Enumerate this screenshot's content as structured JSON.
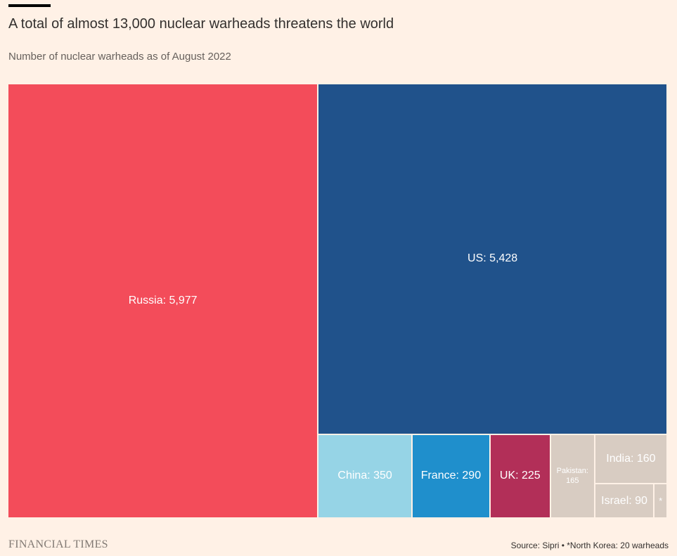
{
  "title": "A total of almost 13,000 nuclear warheads threatens the world",
  "subtitle": "Number of nuclear warheads as of August 2022",
  "source": "Source: Sipri • *North Korea: 20 warheads",
  "logo": "FINANCIAL TIMES",
  "chart_data": {
    "type": "treemap",
    "title": "A total of almost 13,000 nuclear warheads threatens the world",
    "subtitle": "Number of nuclear warheads as of August 2022",
    "items": [
      {
        "name": "Russia",
        "value": 5977,
        "label": "Russia: 5,977",
        "color": "#f34c5a"
      },
      {
        "name": "US",
        "value": 5428,
        "label": "US: 5,428",
        "color": "#20528b"
      },
      {
        "name": "China",
        "value": 350,
        "label": "China: 350",
        "color": "#96d4e6"
      },
      {
        "name": "France",
        "value": 290,
        "label": "France: 290",
        "color": "#1f8fcc"
      },
      {
        "name": "UK",
        "value": 225,
        "label": "UK: 225",
        "color": "#b22f58"
      },
      {
        "name": "Pakistan",
        "value": 165,
        "label": "Pakistan: 165",
        "color": "#d8ccc2"
      },
      {
        "name": "India",
        "value": 160,
        "label": "India: 160",
        "color": "#d8ccc2"
      },
      {
        "name": "Israel",
        "value": 90,
        "label": "Israel: 90",
        "color": "#d8ccc2"
      },
      {
        "name": "North Korea",
        "value": 20,
        "label": "*",
        "color": "#d8ccc2"
      }
    ]
  }
}
